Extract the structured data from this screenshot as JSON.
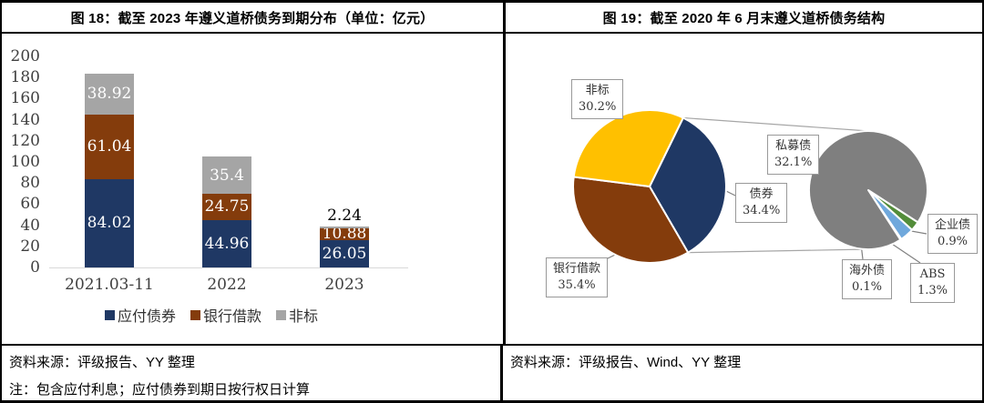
{
  "left_panel": {
    "title": "图 18：截至 2023 年遵义道桥债务到期分布（单位：亿元）",
    "source": "资料来源：评级报告、YY 整理",
    "note": "注：包含应付利息；应付债券到期日按行权日计算"
  },
  "right_panel": {
    "title": "图 19：截至 2020 年 6 月末遵义道桥债务结构",
    "source": "资料来源：评级报告、Wind、YY 整理"
  },
  "chart_data": [
    {
      "type": "bar",
      "stacked": true,
      "title": "截至 2023 年遵义道桥债务到期分布（单位：亿元）",
      "categories": [
        "2021.03-11",
        "2022",
        "2023"
      ],
      "series": [
        {
          "name": "应付债券",
          "color": "#1f3864",
          "values": [
            84.02,
            44.96,
            26.05
          ]
        },
        {
          "name": "银行借款",
          "color": "#843c0c",
          "values": [
            61.04,
            24.75,
            10.88
          ]
        },
        {
          "name": "非标",
          "color": "#a5a5a5",
          "values": [
            38.92,
            35.4,
            2.24
          ]
        }
      ],
      "ylim": [
        0,
        200
      ],
      "ytick_step": 20,
      "grid": false,
      "legend_position": "bottom",
      "value_label_color_inside": "#ffffff",
      "value_label_color_outside": "#000000"
    },
    {
      "type": "pie-of-pie",
      "title": "截至 2020 年 6 月末遵义道桥债务结构",
      "main": {
        "start_angle": 26,
        "slices": [
          {
            "label": "债券",
            "value": 34.4,
            "color": "#1f3864"
          },
          {
            "label": "银行借款",
            "value": 35.4,
            "color": "#843c0c"
          },
          {
            "label": "非标",
            "value": 30.2,
            "color": "#ffc000"
          }
        ]
      },
      "secondary": {
        "represents": "债券",
        "start_angle": 123,
        "slices": [
          {
            "label": "企业债",
            "value": 0.9,
            "color": "#538d3a"
          },
          {
            "label": "ABS",
            "value": 1.3,
            "color": "#6fa8dc"
          },
          {
            "label": "海外债",
            "value": 0.1,
            "color": "#d6e4f0"
          },
          {
            "label": "私募债",
            "value": 32.1,
            "color": "#7f7f7f"
          }
        ]
      },
      "label_format": "percent"
    }
  ]
}
